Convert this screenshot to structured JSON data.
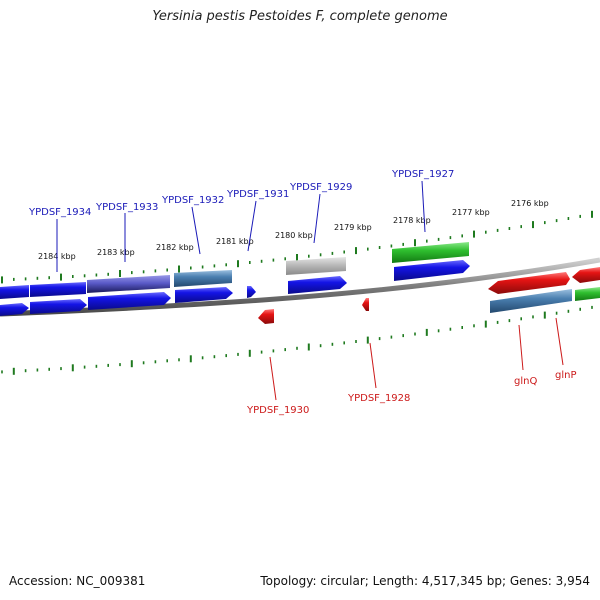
{
  "title": "Yersinia pestis Pestoides F, complete genome",
  "footer": {
    "accession": "Accession: NC_009381",
    "summary": "Topology: circular; Length: 4,517,345 bp; Genes: 3,954"
  },
  "scale_labels": [
    "2184 kbp",
    "2183 kbp",
    "2182 kbp",
    "2181 kbp",
    "2180 kbp",
    "2179 kbp",
    "2178 kbp",
    "2177 kbp",
    "2176 kbp"
  ],
  "gene_labels_top": [
    "YPDSF_1934",
    "YPDSF_1933",
    "YPDSF_1932",
    "YPDSF_1931",
    "YPDSF_1929",
    "YPDSF_1927"
  ],
  "gene_labels_bottom": [
    "YPDSF_1930",
    "YPDSF_1928",
    "glnQ",
    "glnP"
  ],
  "colors": {
    "cds": "#1414e6",
    "cds_reverse": "#e61414",
    "gene_steelblue": "#4a7fb0",
    "gene_purple": "#5a5ac8",
    "gene_gray": "#b4b4b4",
    "gene_green": "#2fbf2f",
    "tick": "#1f7a1f",
    "backbone": "#7a7a7a"
  }
}
